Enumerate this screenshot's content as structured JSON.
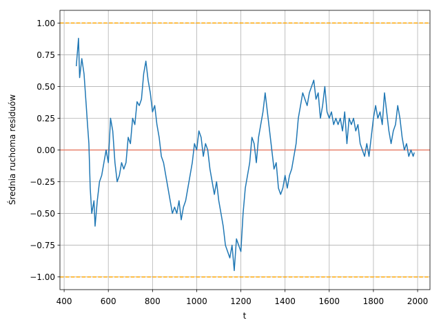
{
  "chart_data": {
    "type": "line",
    "xlabel": "t",
    "ylabel": "Średnia ruchoma residuów",
    "x": [
      455,
      465,
      470,
      480,
      490,
      500,
      505,
      512,
      518,
      525,
      535,
      540,
      550,
      560,
      570,
      580,
      590,
      600,
      610,
      620,
      630,
      640,
      650,
      660,
      670,
      680,
      690,
      700,
      710,
      720,
      730,
      740,
      750,
      760,
      770,
      780,
      790,
      800,
      810,
      820,
      830,
      840,
      850,
      860,
      870,
      880,
      890,
      900,
      910,
      920,
      930,
      940,
      950,
      960,
      970,
      980,
      990,
      1000,
      1010,
      1020,
      1030,
      1040,
      1050,
      1060,
      1070,
      1080,
      1090,
      1100,
      1110,
      1120,
      1130,
      1140,
      1150,
      1160,
      1170,
      1180,
      1190,
      1200,
      1210,
      1220,
      1230,
      1240,
      1250,
      1260,
      1270,
      1280,
      1290,
      1300,
      1310,
      1320,
      1330,
      1340,
      1350,
      1360,
      1370,
      1380,
      1390,
      1400,
      1410,
      1420,
      1430,
      1440,
      1450,
      1460,
      1470,
      1480,
      1490,
      1500,
      1510,
      1520,
      1530,
      1540,
      1550,
      1560,
      1570,
      1580,
      1590,
      1600,
      1610,
      1620,
      1630,
      1640,
      1650,
      1660,
      1670,
      1680,
      1690,
      1700,
      1710,
      1720,
      1730,
      1740,
      1750,
      1760,
      1770,
      1780,
      1790,
      1800,
      1810,
      1820,
      1830,
      1840,
      1850,
      1860,
      1870,
      1880,
      1890,
      1900,
      1910,
      1920,
      1930,
      1940,
      1950,
      1960,
      1970,
      1980,
      1985
    ],
    "series": [
      {
        "color": "#1f77b4",
        "values": [
          0.66,
          0.88,
          0.57,
          0.72,
          0.6,
          0.35,
          0.22,
          0.05,
          -0.3,
          -0.5,
          -0.4,
          -0.6,
          -0.4,
          -0.25,
          -0.2,
          -0.1,
          0,
          -0.1,
          0.25,
          0.15,
          -0.1,
          -0.25,
          -0.2,
          -0.1,
          -0.15,
          -0.1,
          0.1,
          0.05,
          0.25,
          0.2,
          0.38,
          0.35,
          0.4,
          0.6,
          0.7,
          0.55,
          0.45,
          0.3,
          0.35,
          0.2,
          0.1,
          -0.05,
          -0.1,
          -0.2,
          -0.3,
          -0.4,
          -0.5,
          -0.45,
          -0.5,
          -0.4,
          -0.55,
          -0.45,
          -0.4,
          -0.3,
          -0.2,
          -0.1,
          0.05,
          0,
          0.15,
          0.1,
          -0.05,
          0.05,
          0,
          -0.15,
          -0.25,
          -0.35,
          -0.25,
          -0.4,
          -0.5,
          -0.6,
          -0.75,
          -0.8,
          -0.85,
          -0.75,
          -0.95,
          -0.7,
          -0.75,
          -0.8,
          -0.5,
          -0.3,
          -0.2,
          -0.1,
          0.1,
          0.05,
          -0.1,
          0.1,
          0.2,
          0.3,
          0.45,
          0.3,
          0.15,
          0,
          -0.15,
          -0.1,
          -0.3,
          -0.35,
          -0.3,
          -0.2,
          -0.3,
          -0.2,
          -0.15,
          -0.05,
          0.05,
          0.25,
          0.35,
          0.45,
          0.4,
          0.35,
          0.45,
          0.5,
          0.55,
          0.4,
          0.45,
          0.25,
          0.35,
          0.5,
          0.3,
          0.25,
          0.3,
          0.2,
          0.25,
          0.2,
          0.25,
          0.15,
          0.3,
          0.05,
          0.25,
          0.2,
          0.25,
          0.15,
          0.2,
          0.05,
          0,
          -0.05,
          0.05,
          -0.05,
          0.1,
          0.25,
          0.35,
          0.25,
          0.3,
          0.2,
          0.45,
          0.3,
          0.15,
          0.05,
          0.15,
          0.2,
          0.35,
          0.25,
          0.1,
          0,
          0.05,
          -0.05,
          0,
          -0.05,
          -0.02
        ]
      }
    ],
    "hlines": [
      {
        "y": 1,
        "color": "#ffa500",
        "dashed": true
      },
      {
        "y": -1,
        "color": "#ffa500",
        "dashed": true
      },
      {
        "y": 0,
        "color": "#e8806a",
        "dashed": false
      }
    ],
    "xlim": [
      381,
      2056
    ],
    "ylim": [
      -1.1,
      1.1
    ],
    "xticks": [
      400,
      600,
      800,
      1000,
      1200,
      1400,
      1600,
      1800,
      2000
    ],
    "yticks": [
      {
        "value": -1,
        "label": "−1.00"
      },
      {
        "value": -0.75,
        "label": "−0.75"
      },
      {
        "value": -0.5,
        "label": "−0.50"
      },
      {
        "value": -0.25,
        "label": "−0.25"
      },
      {
        "value": 0,
        "label": "0.00"
      },
      {
        "value": 0.25,
        "label": "0.25"
      },
      {
        "value": 0.5,
        "label": "0.50"
      },
      {
        "value": 0.75,
        "label": "0.75"
      },
      {
        "value": 1,
        "label": "1.00"
      }
    ],
    "grid": true
  }
}
